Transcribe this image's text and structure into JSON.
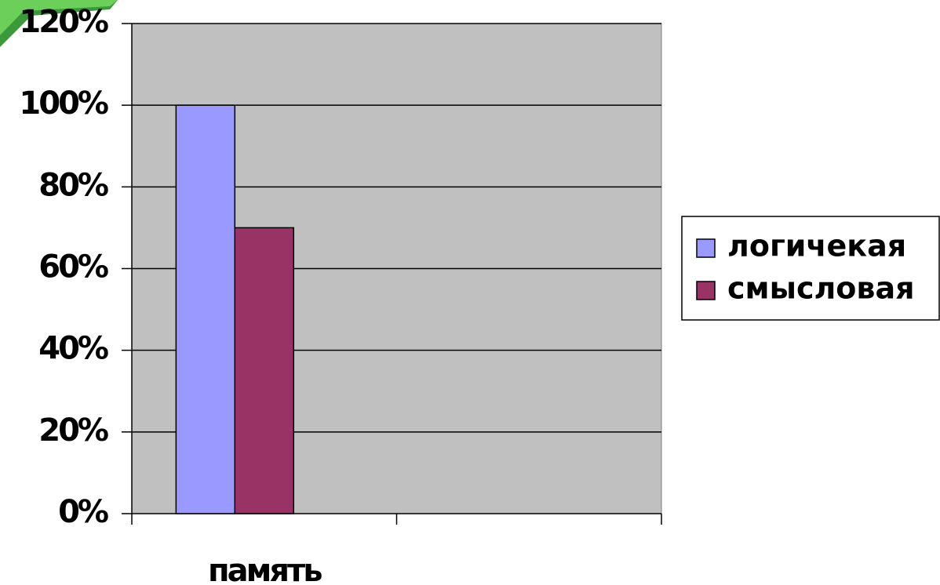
{
  "chart_data": {
    "type": "bar",
    "categories": [
      "память",
      null
    ],
    "series": [
      {
        "name": "логичекая",
        "color": "#9999ff",
        "values": [
          100,
          null
        ]
      },
      {
        "name": "смысловая",
        "color": "#993366",
        "values": [
          70,
          null
        ]
      }
    ],
    "ylim": [
      0,
      120
    ],
    "yticks": [
      {
        "value": 0,
        "label": "0%"
      },
      {
        "value": 20,
        "label": "20%"
      },
      {
        "value": 40,
        "label": "40%"
      },
      {
        "value": 60,
        "label": "60%"
      },
      {
        "value": 80,
        "label": "80%"
      },
      {
        "value": 100,
        "label": "100%"
      },
      {
        "value": 120,
        "label": "120%"
      }
    ],
    "grid": true,
    "legend": "right",
    "plot_background": "#c0c0c0"
  }
}
